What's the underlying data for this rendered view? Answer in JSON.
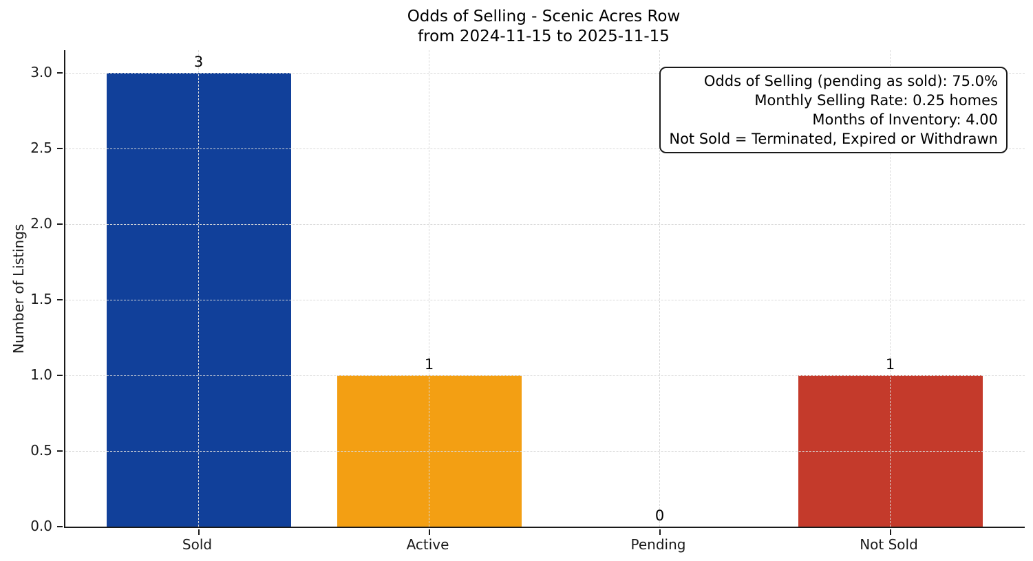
{
  "chart_data": {
    "type": "bar",
    "title": "Odds of Selling - Scenic Acres Row",
    "subtitle": "from 2024-11-15 to 2025-11-15",
    "categories": [
      "Sold",
      "Active",
      "Pending",
      "Not Sold"
    ],
    "values": [
      3,
      1,
      0,
      1
    ],
    "bar_value_labels": [
      "3",
      "1",
      "0",
      "1"
    ],
    "bar_colors": [
      "#11409a",
      "#f39f13",
      null,
      "#c43a2b"
    ],
    "xlabel": "",
    "ylabel": "Number of Listings",
    "yticks": [
      0.0,
      0.5,
      1.0,
      1.5,
      2.0,
      2.5,
      3.0
    ],
    "ytick_labels": [
      "0.0",
      "0.5",
      "1.0",
      "1.5",
      "2.0",
      "2.5",
      "3.0"
    ],
    "ylim": [
      0,
      3.15
    ],
    "grid": {
      "style": "dashed",
      "horizontal": true,
      "vertical": true,
      "color": "#d9d9d9"
    },
    "annotation_position": "upper right",
    "annotations": [
      "Odds of Selling (pending as sold): 75.0%",
      "Monthly Selling Rate: 0.25 homes",
      "Months of Inventory: 4.00",
      "Not Sold = Terminated, Expired or Withdrawn"
    ]
  },
  "colors": {
    "background": "#ffffff",
    "spine": "#1a1a1a",
    "text": "#000000",
    "gridline": "#d9d9d9"
  }
}
